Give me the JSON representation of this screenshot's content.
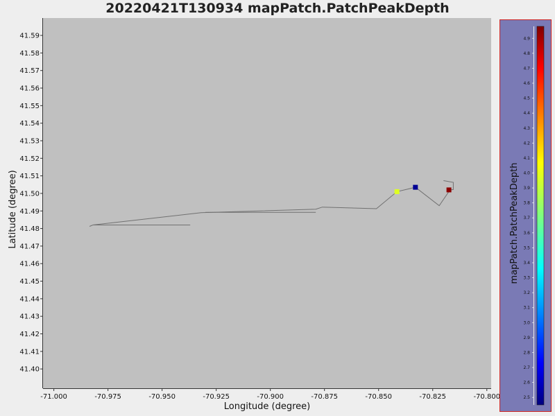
{
  "chart_data": {
    "type": "scatter",
    "title": "20220421T130934 mapPatch.PatchPeakDepth",
    "xlabel": "Longitude (degree)",
    "ylabel": "Latitude (degree)",
    "xlim": [
      -71.005,
      -70.798
    ],
    "ylim": [
      41.389,
      41.5999
    ],
    "x_ticks": [
      "-71.000",
      "-70.975",
      "-70.950",
      "-70.925",
      "-70.900",
      "-70.875",
      "-70.850",
      "-70.825",
      "-70.800"
    ],
    "y_ticks": [
      "41.40",
      "41.41",
      "41.42",
      "41.43",
      "41.44",
      "41.45",
      "41.46",
      "41.47",
      "41.48",
      "41.49",
      "41.50",
      "41.51",
      "41.52",
      "41.53",
      "41.54",
      "41.55",
      "41.56",
      "41.57",
      "41.58",
      "41.59"
    ],
    "track": [
      {
        "x": -70.937,
        "y": 41.482
      },
      {
        "x": -70.982,
        "y": 41.482
      },
      {
        "x": -70.9835,
        "y": 41.4812
      },
      {
        "x": -70.982,
        "y": 41.482
      },
      {
        "x": -70.932,
        "y": 41.489
      },
      {
        "x": -70.879,
        "y": 41.491
      },
      {
        "x": -70.876,
        "y": 41.4922
      },
      {
        "x": -70.851,
        "y": 41.4913
      },
      {
        "x": -70.8415,
        "y": 41.501
      },
      {
        "x": -70.833,
        "y": 41.5035
      },
      {
        "x": -70.822,
        "y": 41.493
      },
      {
        "x": -70.817,
        "y": 41.502
      },
      {
        "x": -70.8155,
        "y": 41.5022
      },
      {
        "x": -70.8155,
        "y": 41.5063
      },
      {
        "x": -70.82,
        "y": 41.5073
      }
    ],
    "track_extra": [
      {
        "x": -70.93,
        "y": 41.4892
      },
      {
        "x": -70.879,
        "y": 41.4892
      }
    ],
    "points": [
      {
        "x": -70.8415,
        "y": 41.501,
        "value": 3.95
      },
      {
        "x": -70.833,
        "y": 41.5035,
        "value": 2.5
      },
      {
        "x": -70.8175,
        "y": 41.502,
        "value": 4.95
      }
    ],
    "colorbar": {
      "label": "mapPatch.PatchPeakDepth",
      "min": 2.45,
      "max": 4.98,
      "ticks": [
        "2.5",
        "2.6",
        "2.7",
        "2.8",
        "2.9",
        "3.0",
        "3.1",
        "3.2",
        "3.3",
        "3.4",
        "3.5",
        "3.6",
        "3.7",
        "3.8",
        "3.9",
        "4.0",
        "4.1",
        "4.2",
        "4.3",
        "4.4",
        "4.5",
        "4.6",
        "4.7",
        "4.8",
        "4.9"
      ],
      "colormap": "jet"
    },
    "plot_background": "#c0c0c0",
    "colorbar_panel_background": "#7a7ab5",
    "colorbar_panel_border": "#cc2222",
    "grid": false
  }
}
